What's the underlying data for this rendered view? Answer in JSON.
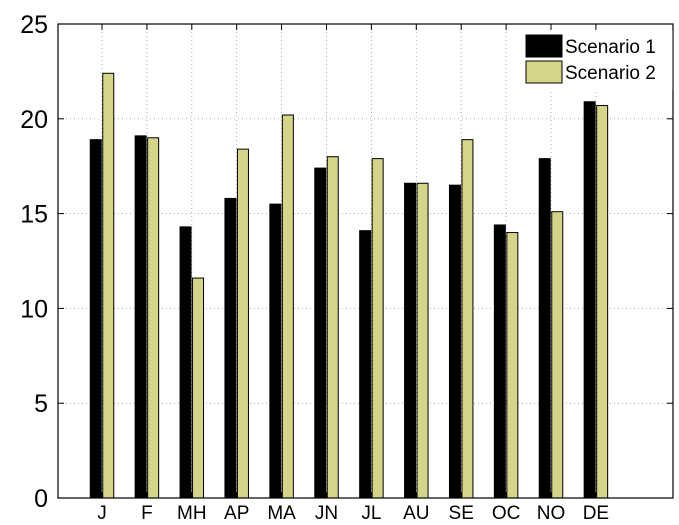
{
  "chart_data": {
    "type": "bar",
    "categories": [
      "J",
      "F",
      "MH",
      "AP",
      "MA",
      "JN",
      "JL",
      "AU",
      "SE",
      "OC",
      "NO",
      "DE"
    ],
    "series": [
      {
        "name": "Scenario 1",
        "color": "#000000",
        "values": [
          18.9,
          19.1,
          14.3,
          15.8,
          15.5,
          17.4,
          14.1,
          16.6,
          16.5,
          14.4,
          17.9,
          20.9
        ]
      },
      {
        "name": "Scenario 2",
        "color": "#d5d58a",
        "values": [
          22.4,
          19.0,
          11.6,
          18.4,
          20.2,
          18.0,
          17.9,
          16.6,
          18.9,
          14.0,
          15.1,
          20.7
        ]
      }
    ],
    "y_ticks": [
      0,
      5,
      10,
      15,
      20,
      25
    ],
    "ylim": [
      0,
      25
    ],
    "grid": true,
    "legend_position": "top-right"
  }
}
